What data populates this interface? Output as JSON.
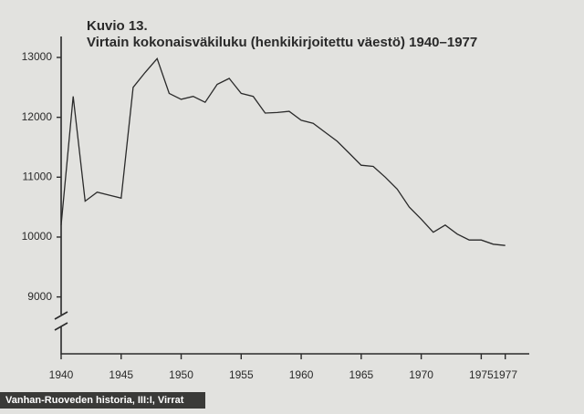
{
  "chart_data": {
    "type": "line",
    "title": "Kuvio 13.",
    "subtitle": "Virtain kokonaisväkiluku (henkikirjoitettu väestö)  1940–1977",
    "source": "Vanhan-Ruoveden historia, III:I, Virrat",
    "x": [
      1940,
      1941,
      1942,
      1943,
      1944,
      1945,
      1946,
      1947,
      1948,
      1949,
      1950,
      1951,
      1952,
      1953,
      1954,
      1955,
      1956,
      1957,
      1958,
      1959,
      1960,
      1961,
      1962,
      1963,
      1964,
      1965,
      1966,
      1967,
      1968,
      1969,
      1970,
      1971,
      1972,
      1973,
      1974,
      1975,
      1976,
      1977
    ],
    "values": [
      10200,
      12350,
      10600,
      10750,
      10700,
      10650,
      12500,
      12750,
      12980,
      12400,
      12300,
      12350,
      12250,
      12550,
      12650,
      12400,
      12350,
      12070,
      12080,
      12100,
      11950,
      11900,
      11750,
      11600,
      11400,
      11200,
      11180,
      11000,
      10800,
      10500,
      10300,
      10080,
      10200,
      10050,
      9950,
      9950,
      9880,
      9860
    ],
    "color": "#2a2a2a",
    "xlim": [
      1940,
      1979
    ],
    "xticks": [
      1940,
      1945,
      1950,
      1955,
      1960,
      1965,
      1970,
      1975,
      1977
    ],
    "ylim": [
      8050,
      13350
    ],
    "yticks": [
      9000,
      10000,
      11000,
      12000,
      13000
    ],
    "grid": false
  }
}
